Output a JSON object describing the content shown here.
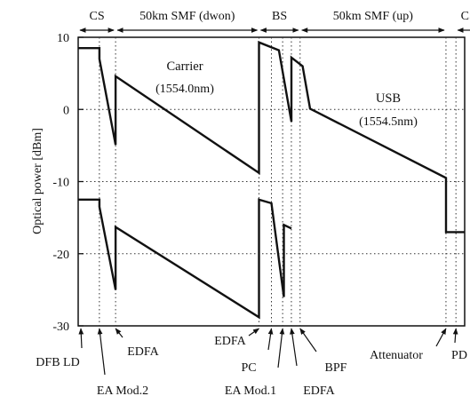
{
  "chart_data": {
    "type": "line",
    "title": "",
    "xlabel": "",
    "ylabel": "Optical power [dBm]",
    "ylim": [
      -30,
      10
    ],
    "y_ticks": [
      10,
      0,
      -10,
      -20,
      -30
    ],
    "grid": "dotted",
    "legend": "none",
    "series": [
      {
        "name": "Carrier",
        "wavelength": "(1554.0nm)",
        "points": [
          [
            0.0,
            8.5
          ],
          [
            1.7,
            8.5
          ],
          [
            1.7,
            7.0
          ],
          [
            3.0,
            -4.9
          ],
          [
            3.0,
            4.6
          ],
          [
            14.5,
            -8.8
          ],
          [
            14.5,
            9.3
          ],
          [
            16.1,
            8.2
          ],
          [
            17.1,
            -1.7
          ],
          [
            17.1,
            7.2
          ],
          [
            18.0,
            6.0
          ],
          [
            18.6,
            0.1
          ],
          [
            29.5,
            -9.5
          ],
          [
            29.5,
            -17.0
          ],
          [
            31.0,
            -17.0
          ]
        ]
      },
      {
        "name": "USB",
        "wavelength": "(1554.5nm)",
        "points": [
          [
            0.0,
            -12.5
          ],
          [
            1.7,
            -12.5
          ],
          [
            1.7,
            -13.5
          ],
          [
            3.0,
            -25.0
          ],
          [
            3.0,
            -16.3
          ],
          [
            14.5,
            -28.8
          ],
          [
            14.5,
            -12.5
          ],
          [
            15.5,
            -13.0
          ],
          [
            16.5,
            -26.0
          ],
          [
            16.5,
            -16.0
          ],
          [
            17.1,
            -16.5
          ]
        ]
      }
    ],
    "component_positions": [
      {
        "name": "DFB LD",
        "x": 0.0
      },
      {
        "name": "EA Mod.2",
        "x": 1.7
      },
      {
        "name": "EDFA",
        "x": 3.0
      },
      {
        "name": "EDFA",
        "x": 14.5
      },
      {
        "name": "PC",
        "x": 15.5
      },
      {
        "name": "EA Mod.1",
        "x": 16.4
      },
      {
        "name": "EDFA",
        "x": 17.1
      },
      {
        "name": "BPF",
        "x": 17.8
      },
      {
        "name": "Attenuator",
        "x": 29.5
      },
      {
        "name": "PD",
        "x": 30.3
      }
    ],
    "sections": [
      {
        "label": "CS",
        "from": 0.0,
        "to": 3.0
      },
      {
        "label": "50km SMF (dwon)",
        "from": 3.0,
        "to": 14.5
      },
      {
        "label": "BS",
        "from": 14.5,
        "to": 17.8
      },
      {
        "label": "50km SMF (up)",
        "from": 17.8,
        "to": 29.5
      },
      {
        "label": "CS",
        "from": 30.3,
        "to": 31.0
      }
    ],
    "annotations": [
      {
        "text": "Carrier",
        "text2": "(1554.0nm)"
      },
      {
        "text": "USB",
        "text2": "(1554.5nm)"
      }
    ]
  }
}
